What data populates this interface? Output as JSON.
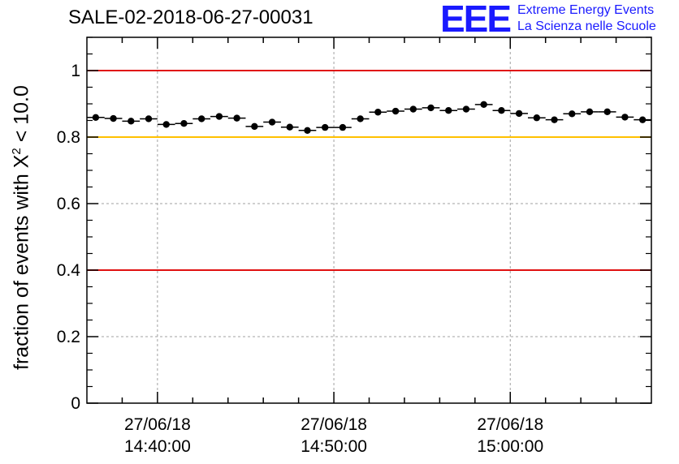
{
  "chart_data": {
    "type": "scatter",
    "title": "SALE-02-2018-06-27-00031",
    "ylabel": {
      "prefix": "fraction of events with X",
      "sup": "2",
      "suffix": " < 10.0"
    },
    "xlabel": "",
    "x_range": [
      "2018-06-27T14:36:00",
      "2018-06-27T15:08:00"
    ],
    "x_ticks": [
      {
        "time": "2018-06-27T14:40:00",
        "line1": "27/06/18",
        "line2": "14:40:00"
      },
      {
        "time": "2018-06-27T14:50:00",
        "line1": "27/06/18",
        "line2": "14:50:00"
      },
      {
        "time": "2018-06-27T15:00:00",
        "line1": "27/06/18",
        "line2": "15:00:00"
      }
    ],
    "ylim": [
      0,
      1.1
    ],
    "y_ticks": [
      0,
      0.2,
      0.4,
      0.6,
      0.8,
      1
    ],
    "y_tick_labels": [
      "0",
      "0.2",
      "0.4",
      "0.6",
      "0.8",
      "1"
    ],
    "grid": true,
    "reference_lines": [
      {
        "y": 1.0,
        "color": "#e01010"
      },
      {
        "y": 0.8,
        "color": "#ffc000"
      },
      {
        "y": 0.4,
        "color": "#e01010"
      }
    ],
    "bin_width_minutes": 1,
    "x": [
      "2018-06-27T14:36:00",
      "2018-06-27T14:37:00",
      "2018-06-27T14:38:00",
      "2018-06-27T14:39:00",
      "2018-06-27T14:40:00",
      "2018-06-27T14:41:00",
      "2018-06-27T14:42:00",
      "2018-06-27T14:43:00",
      "2018-06-27T14:44:00",
      "2018-06-27T14:45:00",
      "2018-06-27T14:46:00",
      "2018-06-27T14:47:00",
      "2018-06-27T14:48:00",
      "2018-06-27T14:49:00",
      "2018-06-27T14:50:00",
      "2018-06-27T14:51:00",
      "2018-06-27T14:52:00",
      "2018-06-27T14:53:00",
      "2018-06-27T14:54:00",
      "2018-06-27T14:55:00",
      "2018-06-27T14:56:00",
      "2018-06-27T14:57:00",
      "2018-06-27T14:58:00",
      "2018-06-27T14:59:00",
      "2018-06-27T15:00:00",
      "2018-06-27T15:01:00",
      "2018-06-27T15:02:00",
      "2018-06-27T15:03:00",
      "2018-06-27T15:04:00",
      "2018-06-27T15:05:00",
      "2018-06-27T15:06:00",
      "2018-06-27T15:07:00"
    ],
    "values": [
      0.859,
      0.856,
      0.848,
      0.855,
      0.838,
      0.841,
      0.855,
      0.862,
      0.857,
      0.832,
      0.845,
      0.83,
      0.82,
      0.829,
      0.829,
      0.855,
      0.875,
      0.878,
      0.884,
      0.888,
      0.88,
      0.884,
      0.898,
      0.88,
      0.871,
      0.858,
      0.852,
      0.87,
      0.876,
      0.876,
      0.86,
      0.852
    ],
    "colors": {
      "marker": "#000000",
      "grid": "#a0a0a0"
    }
  },
  "logo": {
    "mark": "EEE",
    "line1": "Extreme Energy Events",
    "line2": "La Scienza nelle Scuole"
  }
}
